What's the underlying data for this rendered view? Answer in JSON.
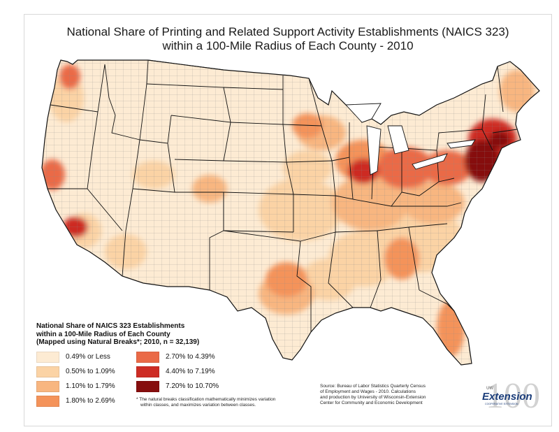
{
  "title": {
    "line1": "National Share of Printing and Related Support Activity Establishments (NAICS 323)",
    "line2": "within a 100-Mile Radius of Each County - 2010"
  },
  "legend": {
    "title_lines": [
      "National Share of NAICS 323 Establishments",
      "within a 100-Mile Radius of Each County",
      "(Mapped using Natural Breaks*; 2010, n = 32,139)"
    ],
    "classes": [
      {
        "label": "0.49% or Less",
        "color": "#fdebd3"
      },
      {
        "label": "0.50% to 1.09%",
        "color": "#fbd3a5"
      },
      {
        "label": "1.10% to 1.79%",
        "color": "#f8b680"
      },
      {
        "label": "1.80% to 2.69%",
        "color": "#f4935a"
      },
      {
        "label": "2.70% to 4.39%",
        "color": "#ea6a47"
      },
      {
        "label": "4.40% to 7.19%",
        "color": "#cd2c24"
      },
      {
        "label": "7.20% to 10.70%",
        "color": "#860e0e"
      }
    ],
    "footnote_lines": [
      "* The natural breaks classification mathematically minimizes variation",
      "within classes, and maximizes variation between classes."
    ]
  },
  "source_lines": [
    "Source: Bureau of Labor Statistics Quarterly Census",
    "of Employment and Wages - 2010.  Calculations",
    "and production by University of Wisconsin-Extension",
    "Center for Community and Economic Development"
  ],
  "logo": {
    "number": "100",
    "wordmark": "Extension",
    "sub": "COOPERATIVE EXTENSION",
    "tag": "UW"
  }
}
